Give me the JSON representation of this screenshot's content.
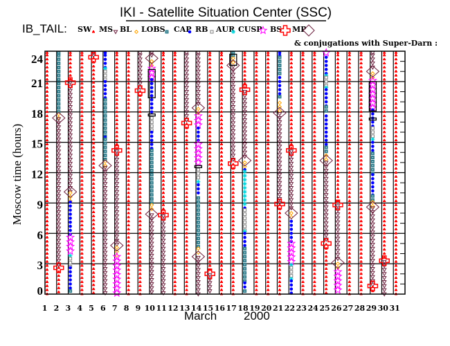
{
  "chart_data": {
    "type": "scatter",
    "title": "IKI - Satellite Situation Center (SSC)",
    "satellite_label": "IB_TAIL:",
    "conjugation_note": "& conjugations with Super-Darn :",
    "xlabel_month": "March",
    "xlabel_year": "2000",
    "ylabel": "Moscow time (hours)",
    "xlim": [
      1,
      31
    ],
    "ylim": [
      0,
      24
    ],
    "x_ticks": [
      "1",
      "2",
      "3",
      "4",
      "5",
      "6",
      "7",
      "8",
      "9",
      "10",
      "11",
      "12",
      "13",
      "14",
      "15",
      "16",
      "17",
      "18",
      "19",
      "20",
      "21",
      "22",
      "23",
      "24",
      "25",
      "26",
      "27",
      "28",
      "29",
      "30",
      "31"
    ],
    "y_ticks": [
      "0",
      "3",
      "6",
      "9",
      "12",
      "15",
      "18",
      "21",
      "24"
    ],
    "grid": true,
    "legend": [
      {
        "label": "SW",
        "symbol": "sun",
        "color": "#ff0000"
      },
      {
        "label": "MS",
        "symbol": "triangle-down",
        "color": "#6b1e3c"
      },
      {
        "label": "BL",
        "symbol": "circle-rays",
        "color": "#ffa500"
      },
      {
        "label": "LOBS",
        "symbol": "square-filled",
        "color": "#2e7d8c"
      },
      {
        "label": "CAP",
        "symbol": "dot",
        "color": "#0000ff"
      },
      {
        "label": "RB",
        "symbol": "square-open",
        "color": "#808080"
      },
      {
        "label": "AUR",
        "symbol": "asterisk",
        "color": "#00d8e0"
      },
      {
        "label": "CUSP",
        "symbol": "star",
        "color": "#ff00ff"
      },
      {
        "label": "BS",
        "symbol": "cross",
        "color": "#ff0000"
      },
      {
        "label": "MP",
        "symbol": "diamond",
        "color": "#6b1e3c"
      }
    ],
    "days": [
      {
        "day": 1,
        "segments": [
          [
            "SW",
            0,
            24
          ]
        ]
      },
      {
        "day": 2,
        "segments": [
          [
            "LOBS",
            17.8,
            24
          ],
          [
            "BL",
            17.3,
            17.8
          ],
          [
            "MS",
            2.6,
            17.3
          ],
          [
            "SW",
            0,
            2.6
          ]
        ],
        "BS": [
          2.6
        ],
        "MP": [
          17.4
        ]
      },
      {
        "day": 3,
        "segments": [
          [
            "SW",
            20.9,
            24
          ],
          [
            "MS",
            10.1,
            20.9
          ],
          [
            "BL",
            9.2,
            10.0
          ],
          [
            "CAP",
            5.7,
            9.1
          ],
          [
            "CUSP",
            4.2,
            5.6
          ],
          [
            "AUR",
            3.6,
            3.8
          ],
          [
            "RB",
            2.7,
            3.5
          ],
          [
            "CAP",
            0.4,
            2.6
          ],
          [
            "LOBS",
            0,
            0.3
          ]
        ],
        "BS": [
          20.9
        ],
        "MP": [
          10.1
        ]
      },
      {
        "day": 4,
        "segments": [
          [
            "SW",
            0,
            24
          ]
        ]
      },
      {
        "day": 5,
        "segments": [
          [
            "MS",
            23.4,
            24
          ],
          [
            "SW",
            0,
            23.3
          ]
        ],
        "BS": [
          23.4
        ]
      },
      {
        "day": 6,
        "segments": [
          [
            "CAP",
            22.4,
            24
          ],
          [
            "AUR",
            22.2,
            22.3
          ],
          [
            "RB",
            21,
            22
          ],
          [
            "CAP",
            19.3,
            21
          ],
          [
            "LOBS",
            15.6,
            19.2
          ],
          [
            "CAP",
            15.4,
            15.5
          ],
          [
            "LOBS",
            13.2,
            15.3
          ],
          [
            "BL",
            12.7,
            13.1
          ],
          [
            "MS",
            0,
            12.5
          ]
        ],
        "MP": [
          12.7
        ]
      },
      {
        "day": 7,
        "segments": [
          [
            "SW",
            14.3,
            24
          ],
          [
            "MS",
            4.9,
            14.1
          ],
          [
            "BL",
            3.8,
            4.6
          ],
          [
            "CUSP",
            0,
            3.7
          ]
        ],
        "BS": [
          14.2
        ],
        "MP": [
          4.8
        ]
      },
      {
        "day": 8,
        "segments": [
          [
            "SW",
            0,
            24
          ]
        ]
      },
      {
        "day": 9,
        "segments": [
          [
            "MS",
            20.2,
            24
          ],
          [
            "SW",
            0,
            20.0
          ]
        ],
        "BS": [
          20.1
        ]
      },
      {
        "day": 10,
        "segments": [
          [
            "MS",
            23.3,
            24
          ],
          [
            "BL",
            22.3,
            23.0
          ],
          [
            "CUSP",
            21.2,
            22.3
          ],
          [
            "CAP",
            17.8,
            21.2
          ],
          [
            "RB",
            16.1,
            17.4
          ],
          [
            "CAP",
            14.3,
            16.0
          ],
          [
            "LOBS",
            8.9,
            14.2
          ],
          [
            "BL",
            8.1,
            8.8
          ],
          [
            "MS",
            0,
            7.8
          ]
        ],
        "MP": [
          23.3,
          7.9
        ],
        "conjugations": [
          [
            19.4,
            22.2
          ],
          [
            17.6,
            17.8
          ]
        ]
      },
      {
        "day": 11,
        "segments": [
          [
            "SW",
            7.9,
            24
          ],
          [
            "MS",
            0,
            7.7
          ]
        ],
        "BS": [
          7.8
        ]
      },
      {
        "day": 12,
        "segments": [
          [
            "SW",
            0,
            24
          ]
        ]
      },
      {
        "day": 13,
        "segments": [
          [
            "MS",
            17.0,
            24
          ],
          [
            "SW",
            0,
            16.8
          ]
        ],
        "BS": [
          16.9
        ]
      },
      {
        "day": 14,
        "segments": [
          [
            "MS",
            18.5,
            24
          ],
          [
            "BL",
            17.6,
            18.3
          ],
          [
            "CUSP",
            16.4,
            17.6
          ],
          [
            "CAP",
            14.9,
            16.4
          ],
          [
            "CUSP",
            12.9,
            14.8
          ],
          [
            "RB",
            11.2,
            12.3
          ],
          [
            "AUR",
            11,
            11.1
          ],
          [
            "CAP",
            9.8,
            10.8
          ],
          [
            "LOBS",
            4.6,
            9.5
          ],
          [
            "BL",
            3.9,
            4.5
          ],
          [
            "MS",
            0,
            3.6
          ]
        ],
        "MP": [
          18.4,
          3.7
        ],
        "conjugations": [
          [
            12.5,
            12.7
          ]
        ]
      },
      {
        "day": 15,
        "segments": [
          [
            "SW",
            2.1,
            24
          ],
          [
            "MS",
            0,
            1.9
          ]
        ],
        "BS": [
          2.0
        ]
      },
      {
        "day": 16,
        "segments": [
          [
            "SW",
            0,
            24
          ]
        ]
      },
      {
        "day": 17,
        "segments": [
          [
            "LOBS",
            23.4,
            24
          ],
          [
            "BL",
            22.8,
            23.3
          ],
          [
            "MS",
            13.1,
            22.5
          ],
          [
            "SW",
            0,
            12.8
          ]
        ],
        "MP": [
          22.6
        ],
        "BS": [
          12.9
        ],
        "conjugations": [
          [
            22.6,
            23.7
          ]
        ]
      },
      {
        "day": 18,
        "segments": [
          [
            "SW",
            20.3,
            24
          ],
          [
            "MS",
            13.4,
            20.0
          ],
          [
            "BL",
            12.4,
            13.0
          ],
          [
            "CAP",
            12.2,
            12.3
          ],
          [
            "AUR",
            8.6,
            12.1
          ],
          [
            "CAP",
            8.4,
            8.5
          ],
          [
            "RB",
            6.3,
            8.3
          ],
          [
            "AUR",
            6.1,
            6.2
          ],
          [
            "CAP",
            4.7,
            6.0
          ],
          [
            "LOBS",
            1.2,
            4.5
          ],
          [
            "CAP",
            0.5,
            1.1
          ],
          [
            "LOBS",
            0,
            0.3
          ]
        ],
        "BS": [
          20.2
        ],
        "MP": [
          13.2
        ]
      },
      {
        "day": 19,
        "segments": [
          [
            "SW",
            0,
            24
          ]
        ]
      },
      {
        "day": 20,
        "segments": [
          [
            "SW",
            0,
            24
          ]
        ]
      },
      {
        "day": 21,
        "segments": [
          [
            "CAP",
            23.5,
            24
          ],
          [
            "LOBS",
            21.6,
            23.4
          ],
          [
            "CAP",
            19.6,
            21.4
          ],
          [
            "LOBS",
            19.2,
            19.5
          ],
          [
            "BL",
            18.1,
            18.9
          ],
          [
            "MS",
            9.0,
            17.8
          ],
          [
            "SW",
            0,
            8.8
          ]
        ],
        "MP": [
          17.9
        ],
        "BS": [
          8.9
        ]
      },
      {
        "day": 22,
        "segments": [
          [
            "SW",
            14.4,
            24
          ],
          [
            "MS",
            8.3,
            14.1
          ],
          [
            "BL",
            7.4,
            8.0
          ],
          [
            "CAP",
            5.0,
            7.2
          ],
          [
            "CUSP",
            3.0,
            5.0
          ],
          [
            "AUR",
            2.8,
            2.9
          ],
          [
            "RB",
            1.6,
            2.6
          ],
          [
            "AUR",
            1.4,
            1.5
          ],
          [
            "CAP",
            0,
            1.3
          ]
        ],
        "BS": [
          14.2
        ],
        "MP": [
          8.0
        ]
      },
      {
        "day": 23,
        "segments": [
          [
            "SW",
            0,
            24
          ]
        ]
      },
      {
        "day": 24,
        "segments": [
          [
            "SW",
            0,
            24
          ]
        ]
      },
      {
        "day": 25,
        "segments": [
          [
            "CUSP",
            23.7,
            24
          ],
          [
            "CAP",
            21.7,
            23.4
          ],
          [
            "AUR",
            21.5,
            21.6
          ],
          [
            "RB",
            20.5,
            21.4
          ],
          [
            "AUR",
            20.3,
            20.4
          ],
          [
            "CAP",
            18.6,
            20.2
          ],
          [
            "LOBS",
            17.8,
            18.5
          ],
          [
            "CAP",
            14.5,
            17.6
          ],
          [
            "LOBS",
            13.8,
            14.5
          ],
          [
            "BL",
            13.1,
            13.7
          ],
          [
            "MS",
            5.1,
            13.0
          ],
          [
            "SW",
            0,
            4.9
          ]
        ],
        "MP": [
          13.2
        ],
        "BS": [
          5.0
        ]
      },
      {
        "day": 26,
        "segments": [
          [
            "SW",
            8.9,
            24
          ],
          [
            "MS",
            3.4,
            8.7
          ],
          [
            "BL",
            2.3,
            3.0
          ],
          [
            "CUSP",
            0,
            2.2
          ]
        ],
        "BS": [
          8.8
        ],
        "MP": [
          3.1
        ]
      },
      {
        "day": 27,
        "segments": [
          [
            "SW",
            0,
            24
          ]
        ]
      },
      {
        "day": 28,
        "segments": [
          [
            "SW",
            0,
            24
          ]
        ]
      },
      {
        "day": 29,
        "segments": [
          [
            "MS",
            22.4,
            24
          ],
          [
            "BL",
            21.2,
            21.8
          ],
          [
            "CUSP",
            18.3,
            21.1
          ],
          [
            "CAP",
            16.6,
            18.2
          ],
          [
            "RB",
            15.5,
            16.4
          ],
          [
            "AUR",
            15.2,
            15.3
          ],
          [
            "CAP",
            14,
            15
          ],
          [
            "LOBS",
            11.9,
            13.9
          ],
          [
            "CAP",
            9.8,
            11.8
          ],
          [
            "LOBS",
            9.2,
            9.7
          ],
          [
            "BL",
            8.7,
            9.1
          ],
          [
            "MS",
            0.9,
            8.5
          ],
          [
            "SW",
            0,
            0.7
          ]
        ],
        "MP": [
          22.0,
          8.6
        ],
        "BS": [
          0.8
        ],
        "conjugations": [
          [
            18.1,
            21
          ],
          [
            17.2,
            17.4
          ]
        ]
      },
      {
        "day": 30,
        "segments": [
          [
            "SW",
            3.4,
            24
          ],
          [
            "MS",
            0,
            3.2
          ]
        ],
        "BS": [
          3.3
        ]
      },
      {
        "day": 31,
        "segments": [
          [
            "SW",
            0,
            24
          ]
        ]
      }
    ]
  }
}
